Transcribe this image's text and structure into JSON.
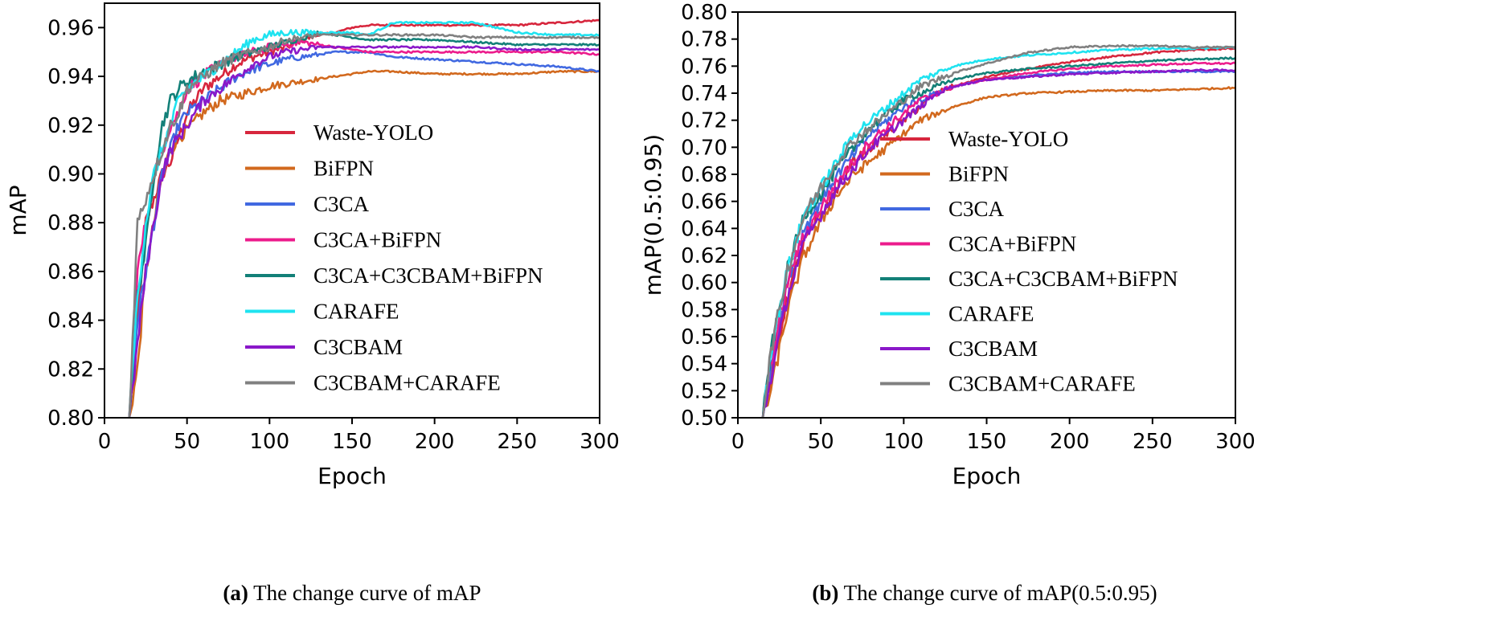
{
  "colors": {
    "Waste-YOLO": "#d7263d",
    "BiFPN": "#d2691e",
    "C3CA": "#4169e1",
    "C3CA+BiFPN": "#ec1c8c",
    "C3CA+C3CBAM+BiFPN": "#138078",
    "CARAFE": "#1fe3f0",
    "C3CBAM": "#8a18c9",
    "C3CBAM+CARAFE": "#808080"
  },
  "chart_data": [
    {
      "type": "line",
      "xlabel": "Epoch",
      "ylabel": "mAP",
      "xlim": [
        0,
        300
      ],
      "ylim": [
        0.8,
        0.97
      ],
      "xticks": [
        0,
        50,
        100,
        150,
        200,
        250,
        300
      ],
      "yticks": [
        0.8,
        0.82,
        0.84,
        0.86,
        0.88,
        0.9,
        0.92,
        0.94,
        0.96
      ],
      "tick_labels_x": [
        "0",
        "50",
        "100",
        "150",
        "200",
        "250",
        "300"
      ],
      "tick_labels_y": [
        "0.80",
        "0.82",
        "0.84",
        "0.86",
        "0.88",
        "0.90",
        "0.92",
        "0.94",
        "0.96"
      ],
      "legend_position": "center-right",
      "caption_label": "(a)",
      "caption_text": " The change curve of mAP",
      "series": [
        {
          "name": "Waste-YOLO",
          "x": [
            15,
            20,
            25,
            30,
            35,
            40,
            45,
            50,
            60,
            70,
            80,
            90,
            100,
            110,
            120,
            130,
            140,
            150,
            160,
            175,
            200,
            225,
            250,
            275,
            300
          ],
          "y": [
            0.8,
            0.84,
            0.88,
            0.89,
            0.9,
            0.905,
            0.915,
            0.925,
            0.935,
            0.94,
            0.945,
            0.948,
            0.95,
            0.952,
            0.955,
            0.957,
            0.958,
            0.96,
            0.961,
            0.961,
            0.961,
            0.961,
            0.961,
            0.962,
            0.963
          ]
        },
        {
          "name": "BiFPN",
          "x": [
            15,
            20,
            25,
            30,
            35,
            40,
            45,
            50,
            60,
            70,
            80,
            90,
            100,
            110,
            120,
            130,
            140,
            150,
            160,
            175,
            200,
            225,
            250,
            275,
            300
          ],
          "y": [
            0.8,
            0.82,
            0.86,
            0.88,
            0.9,
            0.91,
            0.915,
            0.918,
            0.925,
            0.93,
            0.932,
            0.934,
            0.936,
            0.937,
            0.938,
            0.939,
            0.94,
            0.941,
            0.942,
            0.942,
            0.941,
            0.941,
            0.941,
            0.942,
            0.942
          ]
        },
        {
          "name": "C3CA",
          "x": [
            15,
            20,
            25,
            30,
            35,
            40,
            45,
            50,
            60,
            70,
            80,
            90,
            100,
            110,
            120,
            130,
            140,
            150,
            160,
            175,
            200,
            225,
            250,
            275,
            300
          ],
          "y": [
            0.8,
            0.84,
            0.86,
            0.88,
            0.9,
            0.91,
            0.92,
            0.925,
            0.93,
            0.935,
            0.94,
            0.943,
            0.945,
            0.947,
            0.948,
            0.949,
            0.95,
            0.95,
            0.95,
            0.948,
            0.947,
            0.946,
            0.945,
            0.944,
            0.942
          ]
        },
        {
          "name": "C3CA+BiFPN",
          "x": [
            15,
            20,
            25,
            30,
            35,
            40,
            45,
            50,
            60,
            70,
            80,
            90,
            100,
            110,
            120,
            130,
            140,
            150,
            160,
            175,
            200,
            225,
            250,
            275,
            300
          ],
          "y": [
            0.8,
            0.86,
            0.88,
            0.9,
            0.91,
            0.92,
            0.925,
            0.935,
            0.94,
            0.945,
            0.948,
            0.95,
            0.952,
            0.953,
            0.954,
            0.953,
            0.952,
            0.951,
            0.95,
            0.95,
            0.95,
            0.95,
            0.95,
            0.95,
            0.949
          ]
        },
        {
          "name": "C3CA+C3CBAM+BiFPN",
          "x": [
            15,
            20,
            25,
            30,
            35,
            40,
            45,
            50,
            60,
            70,
            80,
            90,
            100,
            110,
            120,
            130,
            140,
            150,
            160,
            175,
            200,
            225,
            250,
            275,
            300
          ],
          "y": [
            0.8,
            0.85,
            0.87,
            0.9,
            0.92,
            0.93,
            0.935,
            0.938,
            0.942,
            0.945,
            0.948,
            0.95,
            0.952,
            0.954,
            0.956,
            0.958,
            0.957,
            0.956,
            0.955,
            0.955,
            0.955,
            0.954,
            0.953,
            0.953,
            0.953
          ]
        },
        {
          "name": "CARAFE",
          "x": [
            15,
            20,
            25,
            30,
            35,
            40,
            45,
            50,
            60,
            70,
            80,
            90,
            100,
            110,
            120,
            130,
            140,
            150,
            160,
            175,
            200,
            225,
            250,
            275,
            300
          ],
          "y": [
            0.8,
            0.85,
            0.88,
            0.9,
            0.91,
            0.92,
            0.93,
            0.935,
            0.94,
            0.945,
            0.95,
            0.955,
            0.957,
            0.958,
            0.958,
            0.958,
            0.958,
            0.958,
            0.957,
            0.962,
            0.962,
            0.962,
            0.958,
            0.957,
            0.957
          ]
        },
        {
          "name": "C3CBAM",
          "x": [
            15,
            20,
            25,
            30,
            35,
            40,
            45,
            50,
            60,
            70,
            80,
            90,
            100,
            110,
            120,
            130,
            140,
            150,
            160,
            175,
            200,
            225,
            250,
            275,
            300
          ],
          "y": [
            0.8,
            0.83,
            0.86,
            0.88,
            0.9,
            0.91,
            0.915,
            0.92,
            0.93,
            0.935,
            0.94,
            0.945,
            0.948,
            0.95,
            0.951,
            0.952,
            0.952,
            0.952,
            0.952,
            0.952,
            0.952,
            0.952,
            0.951,
            0.951,
            0.951
          ]
        },
        {
          "name": "C3CBAM+CARAFE",
          "x": [
            15,
            20,
            25,
            30,
            35,
            40,
            45,
            50,
            60,
            70,
            80,
            90,
            100,
            110,
            120,
            130,
            140,
            150,
            160,
            175,
            200,
            225,
            250,
            275,
            300
          ],
          "y": [
            0.8,
            0.88,
            0.89,
            0.9,
            0.91,
            0.92,
            0.925,
            0.935,
            0.94,
            0.945,
            0.948,
            0.95,
            0.952,
            0.955,
            0.956,
            0.957,
            0.957,
            0.957,
            0.957,
            0.957,
            0.957,
            0.956,
            0.956,
            0.956,
            0.956
          ]
        }
      ]
    },
    {
      "type": "line",
      "xlabel": "Epoch",
      "ylabel": "mAP(0.5:0.95)",
      "xlim": [
        0,
        300
      ],
      "ylim": [
        0.5,
        0.8
      ],
      "xticks": [
        0,
        50,
        100,
        150,
        200,
        250,
        300
      ],
      "yticks": [
        0.5,
        0.52,
        0.54,
        0.56,
        0.58,
        0.6,
        0.62,
        0.64,
        0.66,
        0.68,
        0.7,
        0.72,
        0.74,
        0.76,
        0.78,
        0.8
      ],
      "tick_labels_x": [
        "0",
        "50",
        "100",
        "150",
        "200",
        "250",
        "300"
      ],
      "tick_labels_y": [
        "0.50",
        "0.52",
        "0.54",
        "0.56",
        "0.58",
        "0.60",
        "0.62",
        "0.64",
        "0.66",
        "0.68",
        "0.70",
        "0.72",
        "0.74",
        "0.76",
        "0.78",
        "0.80"
      ],
      "legend_position": "center-right",
      "caption_label": "(b)",
      "caption_text": " The change curve of mAP(0.5:0.95)",
      "series": [
        {
          "name": "Waste-YOLO",
          "x": [
            15,
            20,
            25,
            30,
            35,
            40,
            50,
            60,
            70,
            80,
            90,
            100,
            110,
            120,
            130,
            150,
            175,
            200,
            225,
            250,
            275,
            300
          ],
          "y": [
            0.5,
            0.53,
            0.56,
            0.59,
            0.61,
            0.63,
            0.65,
            0.67,
            0.69,
            0.7,
            0.71,
            0.72,
            0.73,
            0.74,
            0.745,
            0.752,
            0.758,
            0.763,
            0.767,
            0.77,
            0.772,
            0.773
          ]
        },
        {
          "name": "BiFPN",
          "x": [
            15,
            20,
            25,
            30,
            35,
            40,
            50,
            60,
            70,
            80,
            90,
            100,
            110,
            120,
            130,
            150,
            175,
            200,
            225,
            250,
            275,
            300
          ],
          "y": [
            0.5,
            0.52,
            0.55,
            0.58,
            0.6,
            0.62,
            0.645,
            0.665,
            0.68,
            0.69,
            0.7,
            0.71,
            0.72,
            0.725,
            0.73,
            0.737,
            0.74,
            0.741,
            0.742,
            0.742,
            0.743,
            0.744
          ]
        },
        {
          "name": "C3CA",
          "x": [
            15,
            20,
            25,
            30,
            35,
            40,
            50,
            60,
            70,
            80,
            90,
            100,
            110,
            120,
            130,
            150,
            175,
            200,
            225,
            250,
            275,
            300
          ],
          "y": [
            0.5,
            0.54,
            0.57,
            0.6,
            0.62,
            0.64,
            0.66,
            0.68,
            0.695,
            0.71,
            0.72,
            0.73,
            0.735,
            0.74,
            0.745,
            0.75,
            0.753,
            0.755,
            0.756,
            0.756,
            0.756,
            0.756
          ]
        },
        {
          "name": "C3CA+BiFPN",
          "x": [
            15,
            20,
            25,
            30,
            35,
            40,
            50,
            60,
            70,
            80,
            90,
            100,
            110,
            120,
            130,
            150,
            175,
            200,
            225,
            250,
            275,
            300
          ],
          "y": [
            0.5,
            0.54,
            0.57,
            0.6,
            0.62,
            0.635,
            0.655,
            0.675,
            0.69,
            0.705,
            0.715,
            0.725,
            0.735,
            0.74,
            0.745,
            0.75,
            0.755,
            0.758,
            0.76,
            0.761,
            0.762,
            0.762
          ]
        },
        {
          "name": "C3CA+C3CBAM+BiFPN",
          "x": [
            15,
            20,
            25,
            30,
            35,
            40,
            50,
            60,
            70,
            80,
            90,
            100,
            110,
            120,
            130,
            150,
            175,
            200,
            225,
            250,
            275,
            300
          ],
          "y": [
            0.5,
            0.55,
            0.58,
            0.61,
            0.63,
            0.65,
            0.665,
            0.685,
            0.7,
            0.715,
            0.725,
            0.735,
            0.74,
            0.745,
            0.75,
            0.755,
            0.758,
            0.76,
            0.762,
            0.764,
            0.765,
            0.766
          ]
        },
        {
          "name": "CARAFE",
          "x": [
            15,
            20,
            25,
            30,
            35,
            40,
            50,
            60,
            70,
            80,
            90,
            100,
            110,
            120,
            130,
            150,
            175,
            200,
            225,
            250,
            275,
            300
          ],
          "y": [
            0.5,
            0.55,
            0.58,
            0.61,
            0.63,
            0.65,
            0.67,
            0.69,
            0.71,
            0.72,
            0.73,
            0.74,
            0.75,
            0.755,
            0.76,
            0.765,
            0.768,
            0.77,
            0.772,
            0.773,
            0.773,
            0.774
          ]
        },
        {
          "name": "C3CBAM",
          "x": [
            15,
            20,
            25,
            30,
            35,
            40,
            50,
            60,
            70,
            80,
            90,
            100,
            110,
            120,
            130,
            150,
            175,
            200,
            225,
            250,
            275,
            300
          ],
          "y": [
            0.5,
            0.53,
            0.56,
            0.59,
            0.61,
            0.63,
            0.65,
            0.67,
            0.685,
            0.7,
            0.71,
            0.72,
            0.73,
            0.74,
            0.745,
            0.75,
            0.752,
            0.754,
            0.755,
            0.756,
            0.757,
            0.757
          ]
        },
        {
          "name": "C3CBAM+CARAFE",
          "x": [
            15,
            20,
            25,
            30,
            35,
            40,
            50,
            60,
            70,
            80,
            90,
            100,
            110,
            120,
            130,
            150,
            175,
            200,
            225,
            250,
            275,
            300
          ],
          "y": [
            0.5,
            0.55,
            0.58,
            0.61,
            0.63,
            0.65,
            0.67,
            0.69,
            0.705,
            0.715,
            0.725,
            0.735,
            0.745,
            0.75,
            0.755,
            0.762,
            0.77,
            0.774,
            0.775,
            0.775,
            0.774,
            0.774
          ]
        }
      ]
    }
  ]
}
